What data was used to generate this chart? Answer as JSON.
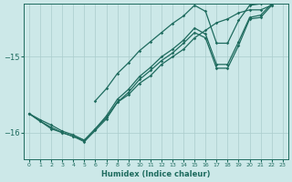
{
  "xlabel": "Humidex (Indice chaleur)",
  "bg_color": "#cce8e8",
  "grid_color": "#aacccc",
  "line_color": "#1e6b5e",
  "xlim": [
    -0.5,
    23.5
  ],
  "ylim": [
    -16.35,
    -14.3
  ],
  "yticks": [
    -16,
    -15
  ],
  "xticks": [
    0,
    1,
    2,
    3,
    4,
    5,
    6,
    7,
    8,
    9,
    10,
    11,
    12,
    13,
    14,
    15,
    16,
    17,
    18,
    19,
    20,
    21,
    22,
    23
  ],
  "line1": [
    [
      0,
      -15.75
    ],
    [
      1,
      -15.85
    ],
    [
      2,
      -15.95
    ],
    [
      3,
      -16.0
    ],
    [
      4,
      -16.05
    ],
    [
      5,
      -16.1
    ],
    [
      6,
      -15.95
    ],
    [
      7,
      -15.8
    ],
    [
      8,
      -15.6
    ],
    [
      9,
      -15.5
    ],
    [
      10,
      -15.35
    ],
    [
      11,
      -15.25
    ],
    [
      12,
      -15.1
    ],
    [
      13,
      -15.0
    ],
    [
      14,
      -14.9
    ],
    [
      15,
      -14.75
    ],
    [
      16,
      -14.65
    ],
    [
      17,
      -14.55
    ],
    [
      18,
      -14.5
    ],
    [
      19,
      -14.42
    ],
    [
      20,
      -14.38
    ],
    [
      21,
      -14.38
    ],
    [
      22,
      -14.32
    ],
    [
      23,
      -14.22
    ]
  ],
  "line2": [
    [
      0,
      -15.75
    ],
    [
      1,
      -15.85
    ],
    [
      2,
      -15.93
    ],
    [
      3,
      -16.0
    ],
    [
      4,
      -16.05
    ],
    [
      5,
      -16.12
    ],
    [
      6,
      -15.97
    ],
    [
      7,
      -15.82
    ],
    [
      8,
      -15.6
    ],
    [
      9,
      -15.47
    ],
    [
      10,
      -15.3
    ],
    [
      11,
      -15.18
    ],
    [
      12,
      -15.05
    ],
    [
      13,
      -14.95
    ],
    [
      14,
      -14.82
    ],
    [
      15,
      -14.68
    ],
    [
      16,
      -14.75
    ],
    [
      17,
      -15.15
    ],
    [
      18,
      -15.15
    ],
    [
      19,
      -14.85
    ],
    [
      20,
      -14.5
    ],
    [
      21,
      -14.48
    ],
    [
      22,
      -14.32
    ],
    [
      23,
      -14.12
    ]
  ],
  "line3": [
    [
      0,
      -15.75
    ],
    [
      1,
      -15.83
    ],
    [
      2,
      -15.9
    ],
    [
      3,
      -15.98
    ],
    [
      4,
      -16.03
    ],
    [
      5,
      -16.1
    ],
    [
      6,
      -15.95
    ],
    [
      7,
      -15.78
    ],
    [
      8,
      -15.56
    ],
    [
      9,
      -15.43
    ],
    [
      10,
      -15.26
    ],
    [
      11,
      -15.14
    ],
    [
      12,
      -15.0
    ],
    [
      13,
      -14.9
    ],
    [
      14,
      -14.78
    ],
    [
      15,
      -14.62
    ],
    [
      16,
      -14.7
    ],
    [
      17,
      -15.1
    ],
    [
      18,
      -15.1
    ],
    [
      19,
      -14.8
    ],
    [
      20,
      -14.48
    ],
    [
      21,
      -14.45
    ],
    [
      22,
      -14.3
    ],
    [
      23,
      -14.1
    ]
  ],
  "line4": [
    [
      6,
      -15.58
    ],
    [
      7,
      -15.42
    ],
    [
      8,
      -15.22
    ],
    [
      9,
      -15.08
    ],
    [
      10,
      -14.92
    ],
    [
      11,
      -14.8
    ],
    [
      12,
      -14.68
    ],
    [
      13,
      -14.56
    ],
    [
      14,
      -14.46
    ],
    [
      15,
      -14.32
    ],
    [
      16,
      -14.4
    ],
    [
      17,
      -14.82
    ],
    [
      18,
      -14.82
    ],
    [
      19,
      -14.52
    ],
    [
      20,
      -14.32
    ],
    [
      21,
      -14.3
    ],
    [
      22,
      -14.2
    ],
    [
      23,
      -14.0
    ]
  ]
}
